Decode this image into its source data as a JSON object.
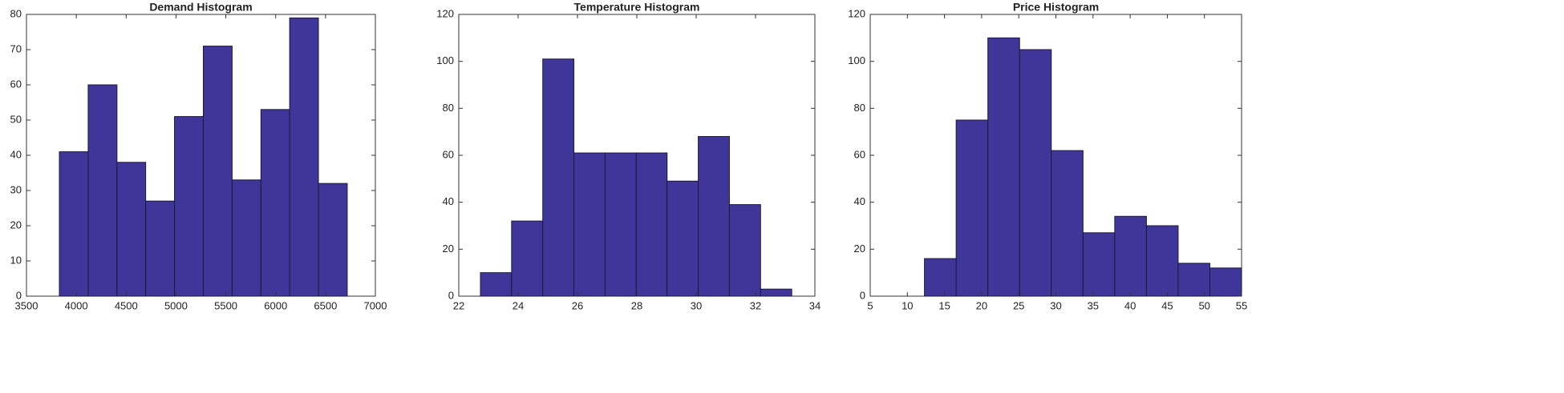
{
  "chart_data": [
    {
      "type": "histogram",
      "title": "Demand Histogram",
      "color": "#40369a",
      "bins": [
        3830,
        4119,
        4408,
        4696,
        4985,
        5274,
        5563,
        5852,
        6140,
        6429,
        6718
      ],
      "values": [
        41,
        60,
        38,
        27,
        51,
        71,
        33,
        53,
        79,
        32
      ],
      "xlim": [
        3500,
        7000
      ],
      "xticks": [
        3500,
        4000,
        4500,
        5000,
        5500,
        6000,
        6500,
        7000
      ],
      "ylim": [
        0,
        80
      ],
      "yticks": [
        0,
        10,
        20,
        30,
        40,
        50,
        60,
        70,
        80
      ]
    },
    {
      "type": "histogram",
      "title": "Temperature Histogram",
      "color": "#40369a",
      "bins": [
        22.73,
        23.78,
        24.83,
        25.88,
        26.93,
        27.98,
        29.02,
        30.07,
        31.12,
        32.17,
        33.22
      ],
      "values": [
        10,
        32,
        101,
        61,
        61,
        61,
        49,
        68,
        39,
        3
      ],
      "xlim": [
        22,
        34
      ],
      "xticks": [
        22,
        24,
        26,
        28,
        30,
        32,
        34
      ],
      "ylim": [
        0,
        120
      ],
      "yticks": [
        0,
        20,
        40,
        60,
        80,
        100,
        120
      ]
    },
    {
      "type": "histogram",
      "title": "Price Histogram",
      "color": "#40369a",
      "bins": [
        12.3,
        16.57,
        20.84,
        25.11,
        29.38,
        33.65,
        37.92,
        42.19,
        46.46,
        50.73,
        55
      ],
      "values": [
        16,
        75,
        110,
        105,
        62,
        27,
        34,
        30,
        14,
        12
      ],
      "xlim": [
        5,
        55
      ],
      "xticks": [
        5,
        10,
        15,
        20,
        25,
        30,
        35,
        40,
        45,
        50,
        55
      ],
      "ylim": [
        0,
        120
      ],
      "yticks": [
        0,
        20,
        40,
        60,
        80,
        100,
        120
      ]
    }
  ]
}
